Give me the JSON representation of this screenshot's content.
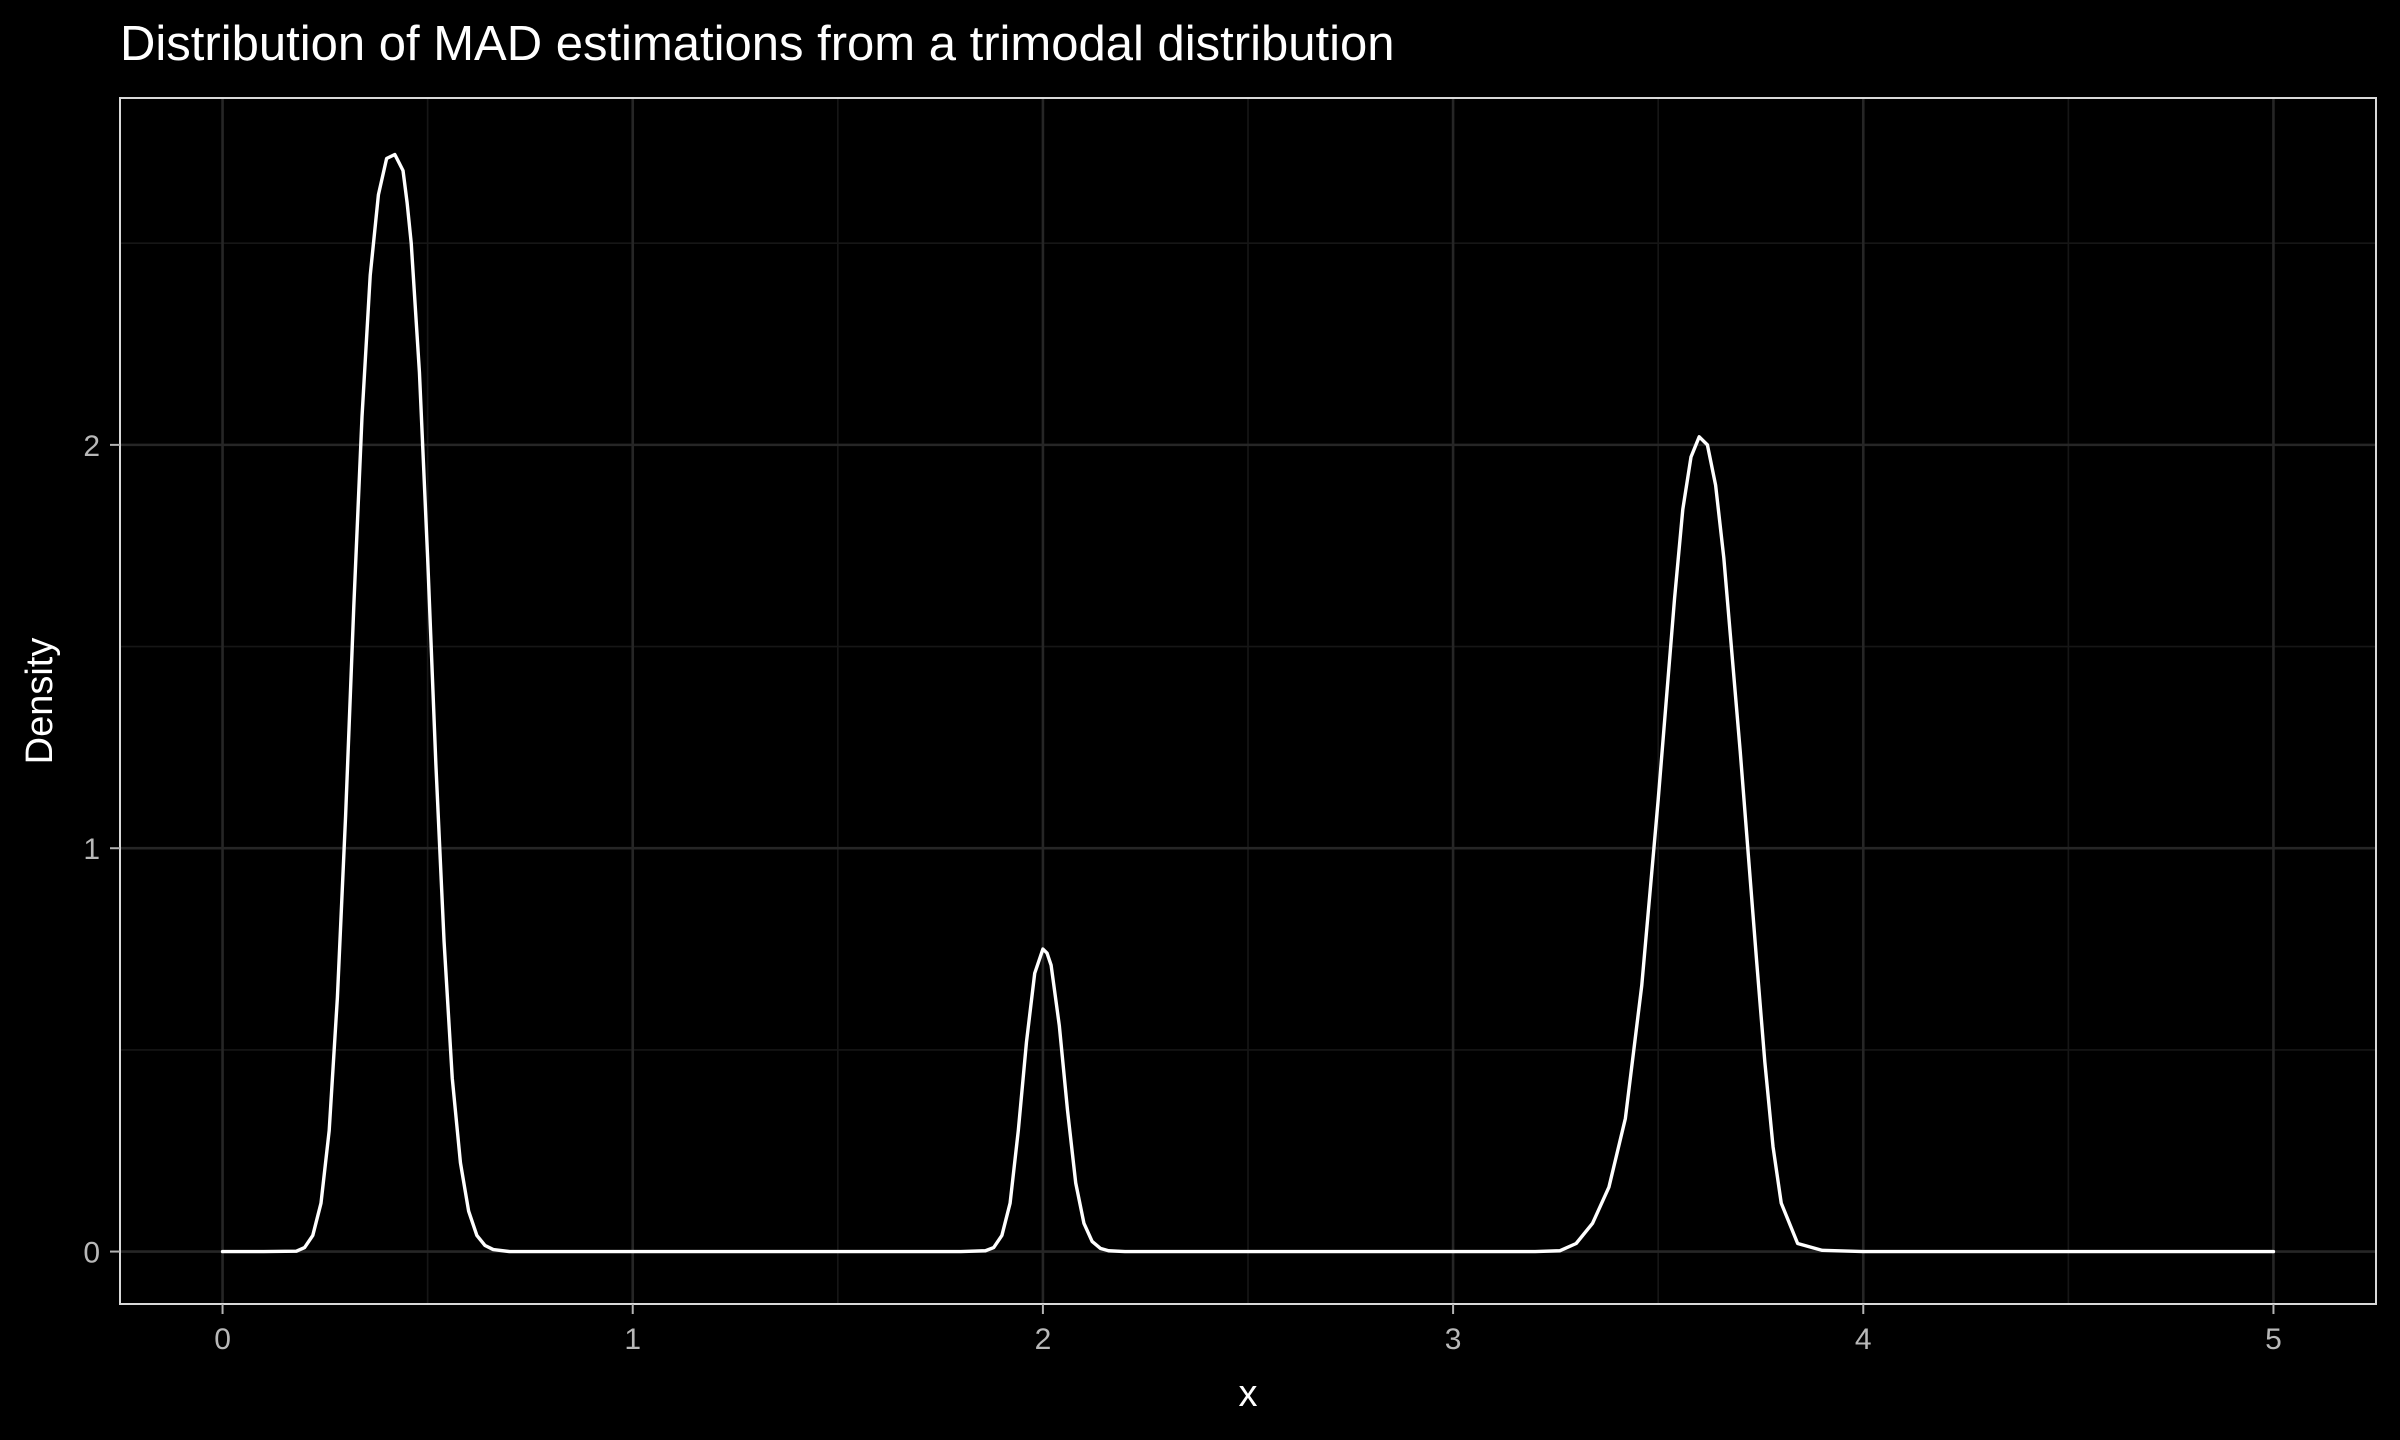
{
  "chart_data": {
    "type": "line",
    "title": "Distribution of MAD estimations from a trimodal distribution",
    "xlabel": "x",
    "ylabel": "Density",
    "xlim": [
      -0.25,
      5.25
    ],
    "ylim": [
      -0.13,
      2.86
    ],
    "x_ticks": [
      0,
      1,
      2,
      3,
      4,
      5
    ],
    "x_tick_labels": [
      "0",
      "1",
      "2",
      "3",
      "4",
      "5"
    ],
    "y_ticks": [
      0,
      1,
      2
    ],
    "y_tick_labels": [
      "0",
      "1",
      "2"
    ],
    "grid": true,
    "theme": "dark",
    "line_color": "#ffffff",
    "background_color": "#000000",
    "series": [
      {
        "x": [
          0.0,
          0.1,
          0.18,
          0.2,
          0.22,
          0.24,
          0.26,
          0.28,
          0.3,
          0.32,
          0.34,
          0.36,
          0.38,
          0.4,
          0.42,
          0.43,
          0.44,
          0.45,
          0.46,
          0.48,
          0.5,
          0.52,
          0.54,
          0.56,
          0.58,
          0.6,
          0.62,
          0.64,
          0.66,
          0.7,
          0.8,
          1.0,
          1.4,
          1.8,
          1.86,
          1.88,
          1.9,
          1.92,
          1.94,
          1.96,
          1.98,
          2.0,
          2.01,
          2.02,
          2.04,
          2.06,
          2.08,
          2.1,
          2.12,
          2.14,
          2.16,
          2.2,
          2.6,
          3.0,
          3.2,
          3.26,
          3.3,
          3.34,
          3.38,
          3.42,
          3.46,
          3.5,
          3.54,
          3.56,
          3.58,
          3.6,
          3.62,
          3.64,
          3.66,
          3.7,
          3.74,
          3.76,
          3.78,
          3.8,
          3.84,
          3.9,
          4.0,
          4.5,
          5.0
        ],
        "y": [
          0.0,
          0.0,
          0.001,
          0.01,
          0.04,
          0.12,
          0.3,
          0.63,
          1.08,
          1.6,
          2.07,
          2.42,
          2.62,
          2.71,
          2.72,
          2.7,
          2.68,
          2.6,
          2.5,
          2.18,
          1.72,
          1.21,
          0.77,
          0.43,
          0.22,
          0.1,
          0.04,
          0.015,
          0.005,
          0.0,
          0.0,
          0.0,
          0.0,
          0.0,
          0.002,
          0.01,
          0.04,
          0.12,
          0.3,
          0.52,
          0.69,
          0.75,
          0.74,
          0.71,
          0.56,
          0.35,
          0.17,
          0.07,
          0.025,
          0.008,
          0.002,
          0.0,
          0.0,
          0.0,
          0.0,
          0.002,
          0.02,
          0.07,
          0.16,
          0.33,
          0.66,
          1.12,
          1.62,
          1.84,
          1.97,
          2.02,
          2.0,
          1.9,
          1.72,
          1.24,
          0.72,
          0.47,
          0.26,
          0.12,
          0.02,
          0.003,
          0.0,
          0.0,
          0.0
        ]
      }
    ]
  }
}
